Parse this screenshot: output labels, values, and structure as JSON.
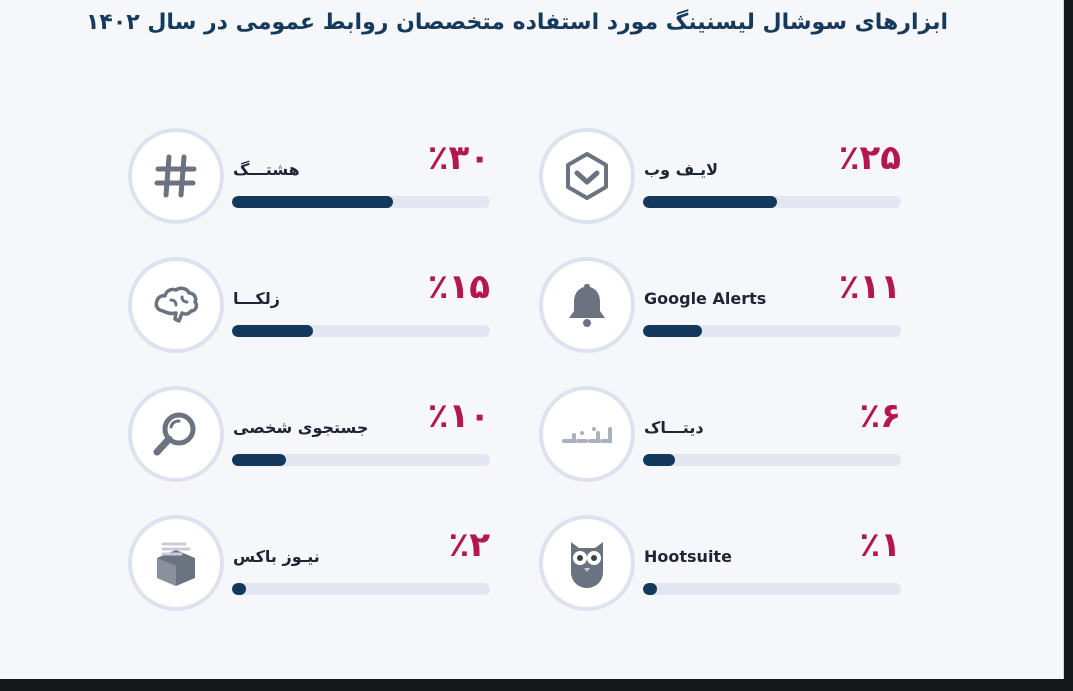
{
  "title": "ابزارهای سوشال لیسنینگ مورد استفاده متخصصان روابط عمومی در سال ۱۴۰۲",
  "colors": {
    "percent": "#b5164b",
    "bar": "#12395c",
    "track": "#e1e6f1",
    "title": "#163a5c"
  },
  "chart_data": {
    "type": "bar",
    "unit": "%",
    "categories": [
      "هشتـــگ",
      "لایـف وب",
      "زلکـــا",
      "Google Alerts",
      "جستجوی شخصی",
      "دیتـــاک",
      "نیـوز باکس",
      "Hootsuite"
    ],
    "values": [
      30,
      25,
      15,
      11,
      10,
      6,
      2,
      1
    ],
    "value_labels": [
      "٪۳۰",
      "٪۲۵",
      "٪۱۵",
      "٪۱۱",
      "٪۱۰",
      "٪۶",
      "٪۲",
      "٪۱"
    ],
    "icons": [
      "hashtag-icon",
      "hexagon-chevron-icon",
      "brain-icon",
      "bell-icon",
      "magnifier-icon",
      "datak-logo-icon",
      "news-box-icon",
      "owl-icon"
    ],
    "xlim": [
      0,
      48
    ]
  }
}
